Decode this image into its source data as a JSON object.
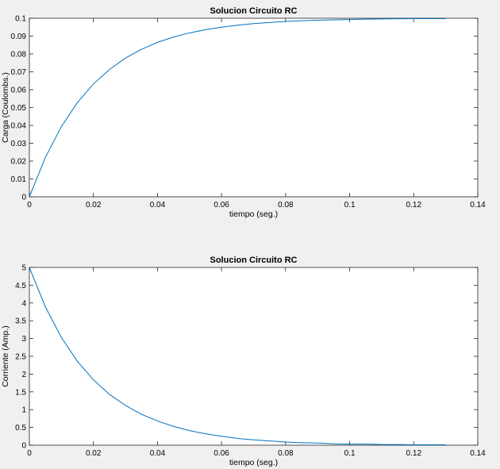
{
  "figure_background": "#f0f0f0",
  "line_color": "#0072bd",
  "chart_data": [
    {
      "type": "line",
      "title": "Solucion Circuito RC",
      "xlabel": "tiempo (seg.)",
      "ylabel": "Carga (Coulombs.)",
      "xlim": [
        0,
        0.14
      ],
      "ylim": [
        0,
        0.1
      ],
      "xticks": [
        "0",
        "0.02",
        "0.04",
        "0.06",
        "0.08",
        "0.1",
        "0.12",
        "0.14"
      ],
      "yticks": [
        "0",
        "0.01",
        "0.02",
        "0.03",
        "0.04",
        "0.05",
        "0.06",
        "0.07",
        "0.08",
        "0.09",
        "0.1"
      ],
      "grid": false,
      "x": [
        0,
        0.005,
        0.01,
        0.015,
        0.02,
        0.025,
        0.03,
        0.035,
        0.04,
        0.045,
        0.05,
        0.055,
        0.06,
        0.065,
        0.07,
        0.075,
        0.08,
        0.085,
        0.09,
        0.095,
        0.1,
        0.105,
        0.11,
        0.115,
        0.12,
        0.125,
        0.13
      ],
      "series": [
        {
          "values": [
            0,
            0.0221,
            0.0393,
            0.0528,
            0.0632,
            0.0713,
            0.0777,
            0.0826,
            0.0865,
            0.0895,
            0.0918,
            0.0936,
            0.095,
            0.0961,
            0.097,
            0.0976,
            0.0982,
            0.0986,
            0.0989,
            0.0991,
            0.0993,
            0.0995,
            0.0996,
            0.0997,
            0.0998,
            0.0998,
            0.0998
          ]
        }
      ]
    },
    {
      "type": "line",
      "title": "Solucion Circuito RC",
      "xlabel": "tiempo (seg.)",
      "ylabel": "Corriente (Amp.)",
      "xlim": [
        0,
        0.14
      ],
      "ylim": [
        0,
        5
      ],
      "xticks": [
        "0",
        "0.02",
        "0.04",
        "0.06",
        "0.08",
        "0.1",
        "0.12",
        "0.14"
      ],
      "yticks": [
        "0",
        "0.5",
        "1",
        "1.5",
        "2",
        "2.5",
        "3",
        "3.5",
        "4",
        "4.5",
        "5"
      ],
      "grid": false,
      "x": [
        0,
        0.005,
        0.01,
        0.015,
        0.02,
        0.025,
        0.03,
        0.035,
        0.04,
        0.045,
        0.05,
        0.055,
        0.06,
        0.065,
        0.07,
        0.075,
        0.08,
        0.085,
        0.09,
        0.095,
        0.1,
        0.105,
        0.11,
        0.115,
        0.12,
        0.125,
        0.13
      ],
      "series": [
        {
          "values": [
            5,
            3.89,
            3.03,
            2.36,
            1.84,
            1.43,
            1.12,
            0.87,
            0.68,
            0.53,
            0.41,
            0.32,
            0.25,
            0.19,
            0.15,
            0.12,
            0.09,
            0.07,
            0.06,
            0.04,
            0.03,
            0.03,
            0.02,
            0.02,
            0.01,
            0.01,
            0.01
          ]
        }
      ]
    }
  ]
}
